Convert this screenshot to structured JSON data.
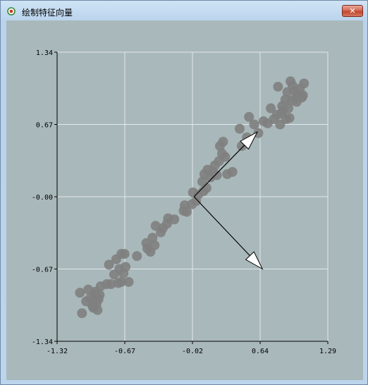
{
  "window": {
    "title": "绘制特征向量",
    "close_label": "✕",
    "icon": "radio-record-icon"
  },
  "colors": {
    "client_bg": "#a9b8ba",
    "grid": "#e2e8ea",
    "point": "#808080",
    "arrow_fill": "#ffffff"
  },
  "chart_data": {
    "type": "scatter",
    "title": "",
    "xlabel": "",
    "ylabel": "",
    "xlim": [
      -1.32,
      1.29
    ],
    "ylim": [
      -1.34,
      1.34
    ],
    "x_ticks": [
      "-1.32",
      "-0.67",
      "-0.02",
      "0.64",
      "1.29"
    ],
    "y_ticks": [
      "1.34",
      "0.67",
      "-0.00",
      "-0.67",
      "-1.34"
    ],
    "grid": true,
    "legend": "none",
    "points": [
      [
        -1.1,
        -0.89
      ],
      [
        -1.08,
        -1.08
      ],
      [
        -1.04,
        -0.97
      ],
      [
        -1.02,
        -0.86
      ],
      [
        -1.0,
        -0.94
      ],
      [
        -0.98,
        -1.01
      ],
      [
        -0.96,
        -0.9
      ],
      [
        -0.94,
        -0.99
      ],
      [
        -0.92,
        -0.95
      ],
      [
        -0.9,
        -0.83
      ],
      [
        -0.98,
        -0.97
      ],
      [
        -0.95,
        -0.88
      ],
      [
        -0.93,
        -1.05
      ],
      [
        -0.91,
        -0.91
      ],
      [
        -0.97,
        -1.03
      ],
      [
        -0.84,
        -0.81
      ],
      [
        -0.82,
        -0.63
      ],
      [
        -0.8,
        -0.81
      ],
      [
        -0.77,
        -0.72
      ],
      [
        -0.75,
        -0.58
      ],
      [
        -0.73,
        -0.8
      ],
      [
        -0.72,
        -0.67
      ],
      [
        -0.7,
        -0.79
      ],
      [
        -0.7,
        -0.53
      ],
      [
        -0.68,
        -0.71
      ],
      [
        -0.67,
        -0.53
      ],
      [
        -0.66,
        -0.65
      ],
      [
        -0.63,
        -0.79
      ],
      [
        -0.55,
        -0.55
      ],
      [
        -0.46,
        -0.43
      ],
      [
        -0.45,
        -0.48
      ],
      [
        -0.42,
        -0.51
      ],
      [
        -0.4,
        -0.38
      ],
      [
        -0.38,
        -0.45
      ],
      [
        -0.37,
        -0.27
      ],
      [
        -0.32,
        -0.33
      ],
      [
        -0.3,
        -0.29
      ],
      [
        -0.26,
        -0.25
      ],
      [
        -0.25,
        -0.2
      ],
      [
        -0.19,
        -0.21
      ],
      [
        -0.1,
        -0.13
      ],
      [
        -0.09,
        -0.08
      ],
      [
        -0.07,
        -0.14
      ],
      [
        -0.02,
        -0.07
      ],
      [
        -0.01,
        0.04
      ],
      [
        0.02,
        -0.04
      ],
      [
        0.04,
        0.02
      ],
      [
        0.08,
        0.14
      ],
      [
        0.09,
        0.05
      ],
      [
        0.1,
        0.21
      ],
      [
        0.12,
        0.08
      ],
      [
        0.13,
        0.25
      ],
      [
        0.16,
        0.18
      ],
      [
        0.18,
        0.23
      ],
      [
        0.2,
        0.29
      ],
      [
        0.22,
        0.2
      ],
      [
        0.24,
        0.33
      ],
      [
        0.25,
        0.47
      ],
      [
        0.27,
        0.4
      ],
      [
        0.28,
        0.51
      ],
      [
        0.3,
        0.37
      ],
      [
        0.32,
        0.21
      ],
      [
        0.37,
        0.23
      ],
      [
        0.44,
        0.63
      ],
      [
        0.46,
        0.47
      ],
      [
        0.51,
        0.55
      ],
      [
        0.53,
        0.74
      ],
      [
        0.58,
        0.67
      ],
      [
        0.62,
        0.59
      ],
      [
        0.67,
        0.7
      ],
      [
        0.71,
        0.68
      ],
      [
        0.74,
        0.82
      ],
      [
        0.77,
        0.72
      ],
      [
        0.8,
        0.76
      ],
      [
        0.81,
        1.02
      ],
      [
        0.83,
        0.67
      ],
      [
        0.85,
        0.84
      ],
      [
        0.86,
        0.8
      ],
      [
        0.88,
        0.9
      ],
      [
        0.89,
        0.72
      ],
      [
        0.9,
        0.97
      ],
      [
        0.92,
        0.73
      ],
      [
        0.93,
        1.07
      ],
      [
        0.94,
        0.89
      ],
      [
        0.95,
        1.03
      ],
      [
        0.97,
        0.98
      ],
      [
        0.98,
        0.91
      ],
      [
        1.0,
        0.95
      ],
      [
        1.02,
        1.0
      ],
      [
        1.04,
        0.92
      ],
      [
        1.05,
        0.94
      ],
      [
        1.06,
        1.05
      ],
      [
        0.84,
        0.77
      ],
      [
        0.91,
        0.82
      ],
      [
        0.99,
        0.88
      ]
    ],
    "eigenvectors": [
      {
        "from": [
          0.0,
          0.0
        ],
        "to": [
          0.61,
          0.6
        ]
      },
      {
        "from": [
          0.0,
          0.0
        ],
        "to": [
          0.66,
          -0.67
        ]
      }
    ]
  }
}
